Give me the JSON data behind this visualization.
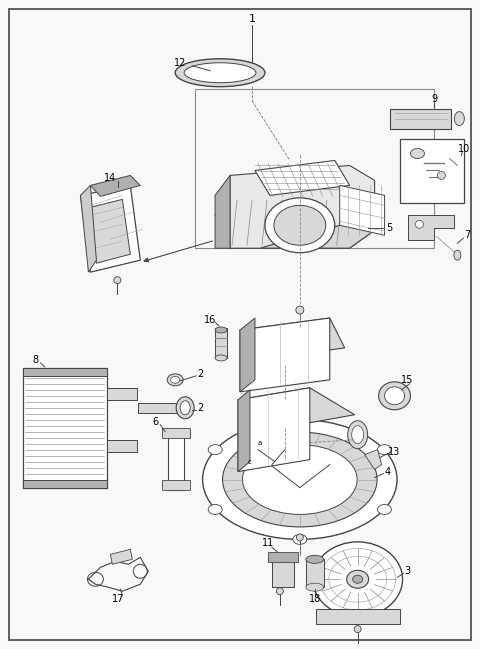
{
  "background_color": "#f8f8f8",
  "border_color": "#444444",
  "line_color": "#444444",
  "light_gray": "#d8d8d8",
  "mid_gray": "#b0b0b0",
  "text_color": "#000000",
  "figure_width": 4.8,
  "figure_height": 6.49,
  "dpi": 100
}
